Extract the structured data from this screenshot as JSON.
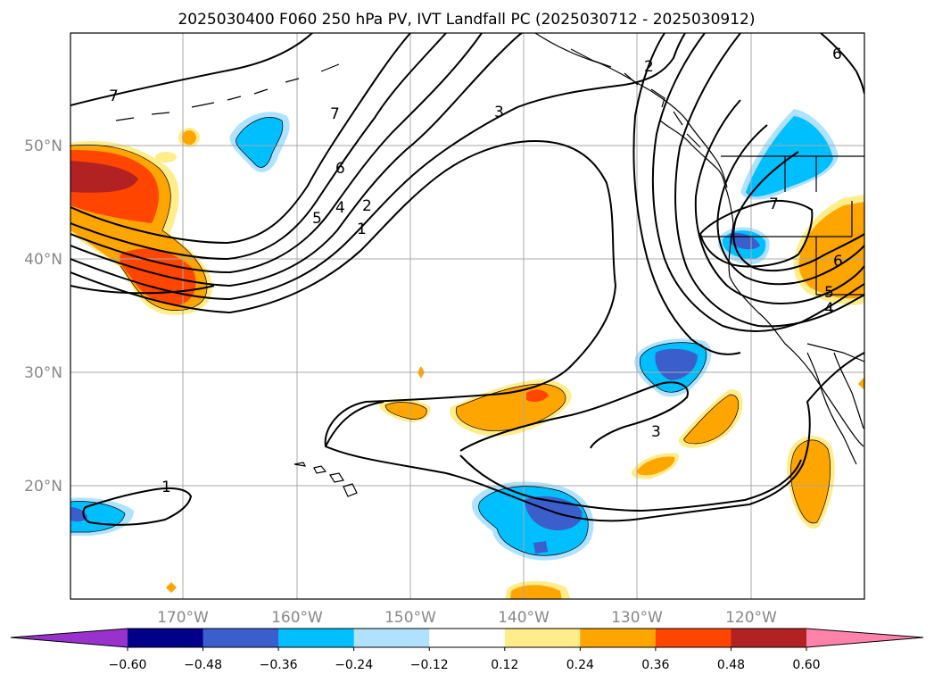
{
  "chart_data": {
    "type": "heatmap",
    "title": "2025030400 F060 250 hPa PV, IVT Landfall PC (2025030712 - 2025030912)",
    "map": {
      "lon_range": [
        -180,
        -110
      ],
      "lat_range": [
        10,
        60
      ],
      "lon_ticks": [
        {
          "lon": -170,
          "label": "170°W"
        },
        {
          "lon": -160,
          "label": "160°W"
        },
        {
          "lon": -150,
          "label": "150°W"
        },
        {
          "lon": -140,
          "label": "140°W"
        },
        {
          "lon": -130,
          "label": "130°W"
        },
        {
          "lon": -120,
          "label": "120°W"
        }
      ],
      "lat_ticks": [
        {
          "lat": 50,
          "label": "50°N"
        },
        {
          "lat": 40,
          "label": "40°N"
        },
        {
          "lat": 30,
          "label": "30°N"
        },
        {
          "lat": 20,
          "label": "20°N"
        }
      ],
      "grid": true
    },
    "colorbar": {
      "orientation": "horizontal",
      "extend": "both",
      "levels": [
        -0.6,
        -0.48,
        -0.36,
        -0.24,
        -0.12,
        0.12,
        0.24,
        0.36,
        0.48,
        0.6
      ],
      "tick_labels": [
        "−0.60",
        "−0.48",
        "−0.36",
        "−0.24",
        "−0.12",
        "0.12",
        "0.24",
        "0.36",
        "0.48",
        "0.60"
      ],
      "colors": [
        "#9932cc",
        "#00008b",
        "#3a5fcd",
        "#00bfff",
        "#b0e2ff",
        "#ffffff",
        "#ffec8b",
        "#ffa500",
        "#ff4500",
        "#b22222",
        "#ff82ab"
      ]
    },
    "pc_regions": [
      {
        "name": "dateline-jet-positive",
        "level": 0.36,
        "lon": -174,
        "lat": 44
      },
      {
        "name": "dateline-jet-core",
        "level": 0.48,
        "lon": -176,
        "lat": 47
      },
      {
        "name": "pos-anomaly-170w-38n",
        "level": 0.36,
        "lon": -170,
        "lat": 39
      },
      {
        "name": "subtropical-positive-140w",
        "level": 0.24,
        "lon": -139,
        "lat": 27
      },
      {
        "name": "neg-anomaly-140w-17n",
        "level": -0.36,
        "lon": -138,
        "lat": 17
      },
      {
        "name": "neg-anomaly-128w-31n",
        "level": -0.36,
        "lon": -127,
        "lat": 31
      },
      {
        "name": "neg-anomaly-119w-48n",
        "level": -0.24,
        "lon": -118,
        "lat": 48
      },
      {
        "name": "pos-anomaly-114w-40n",
        "level": 0.24,
        "lon": -113,
        "lat": 40
      },
      {
        "name": "pos-anomaly-113w-20n",
        "level": 0.24,
        "lon": -113,
        "lat": 20
      }
    ],
    "pv_contour_labels": [
      "7",
      "6",
      "5",
      "4",
      "2",
      "1",
      "3",
      "2",
      "6",
      "7",
      "6",
      "5",
      "4",
      "3",
      "1"
    ]
  }
}
